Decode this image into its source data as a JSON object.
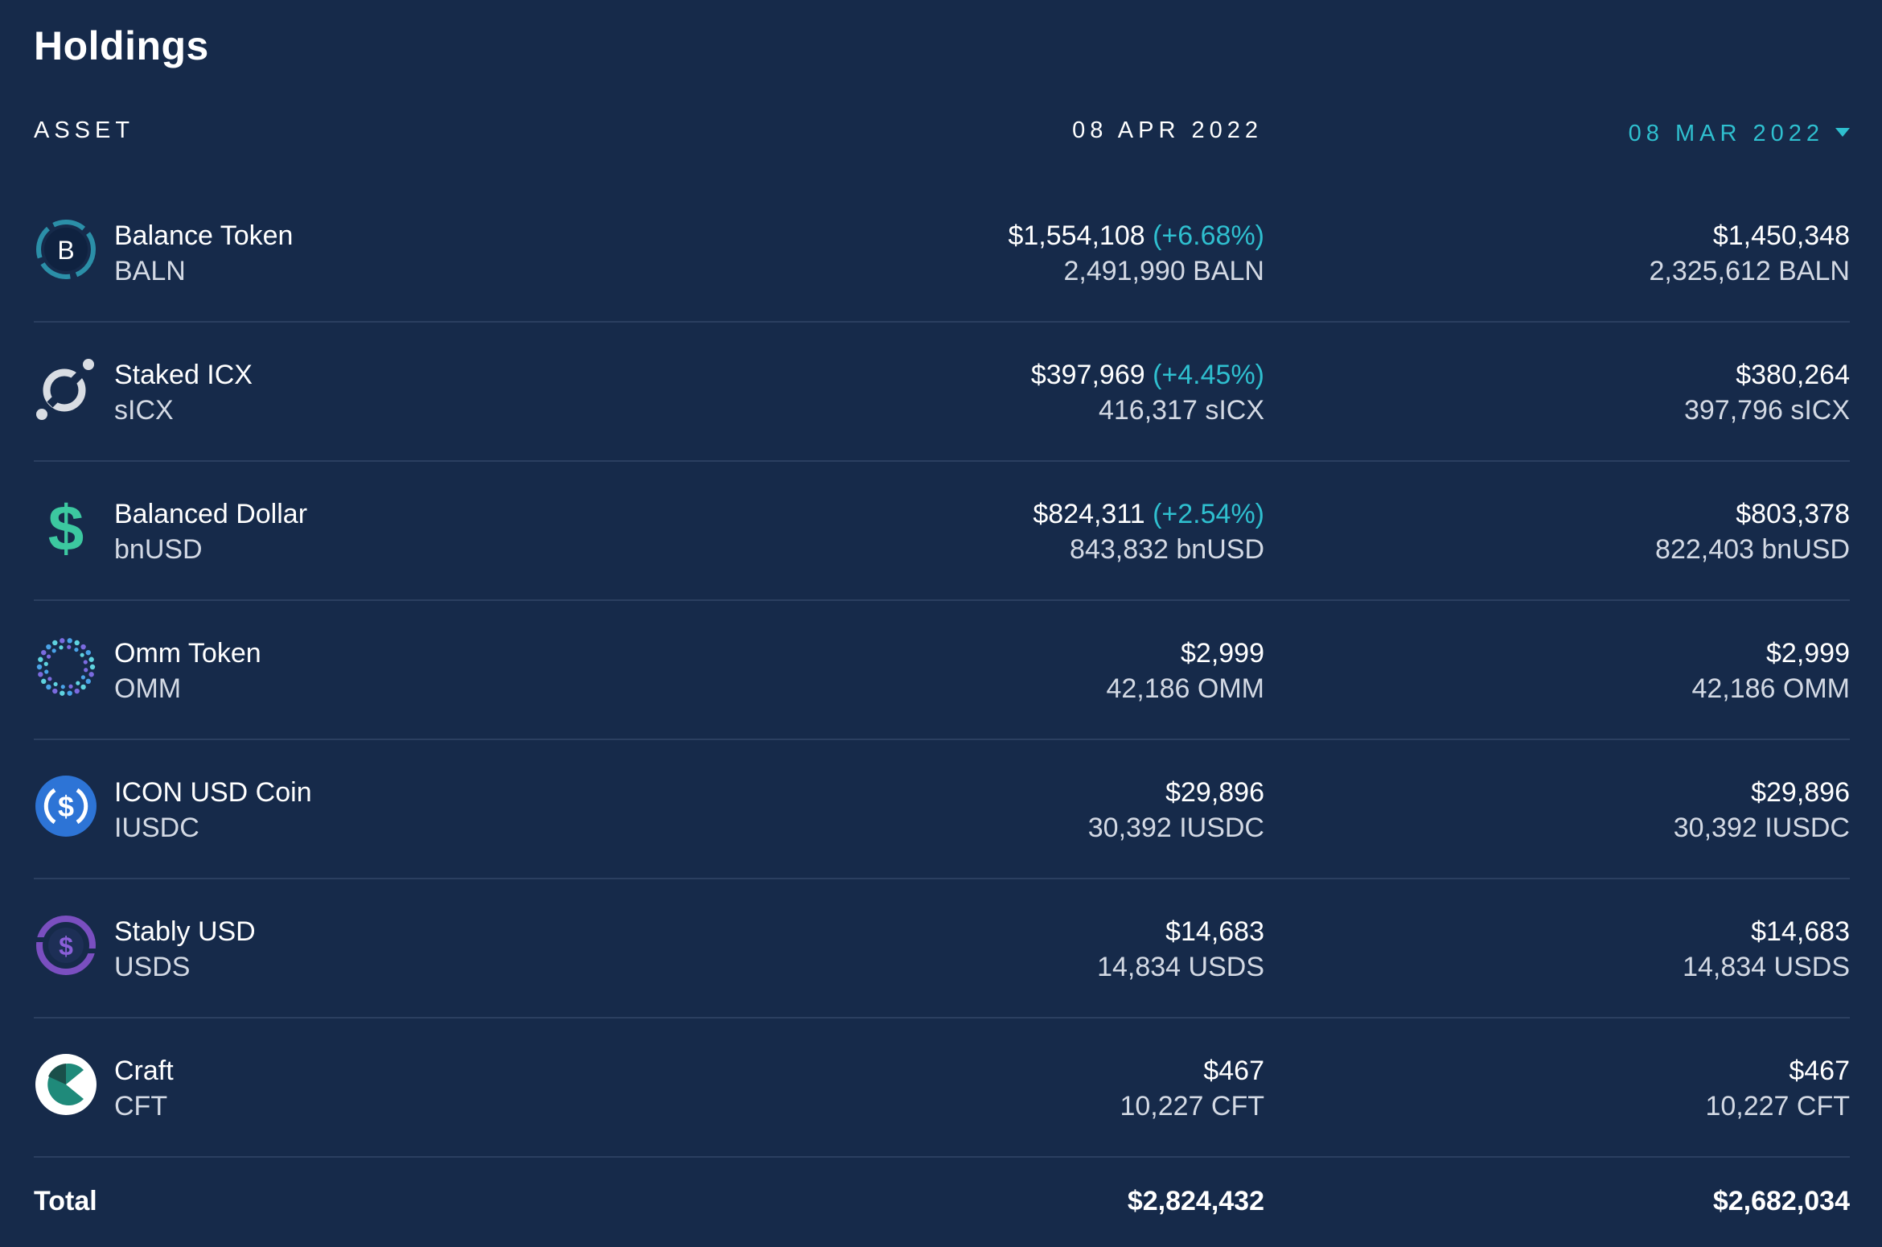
{
  "title": "Holdings",
  "columns": {
    "asset": "ASSET",
    "current_date": "08 APR 2022",
    "compare_date": "08 MAR 2022"
  },
  "colors": {
    "background": "#162a4a",
    "accent": "#2fbfcf",
    "divider": "#2b3f60"
  },
  "assets": [
    {
      "icon": "balance-token-icon",
      "name": "Balance Token",
      "symbol": "BALN",
      "current_value": "$1,554,108",
      "change": "(+6.68%)",
      "current_amount": "2,491,990 BALN",
      "compare_value": "$1,450,348",
      "compare_amount": "2,325,612 BALN"
    },
    {
      "icon": "icx-icon",
      "name": "Staked ICX",
      "symbol": "sICX",
      "current_value": "$397,969",
      "change": "(+4.45%)",
      "current_amount": "416,317 sICX",
      "compare_value": "$380,264",
      "compare_amount": "397,796 sICX"
    },
    {
      "icon": "dollar-sign-icon",
      "name": "Balanced Dollar",
      "symbol": "bnUSD",
      "current_value": "$824,311",
      "change": "(+2.54%)",
      "current_amount": "843,832 bnUSD",
      "compare_value": "$803,378",
      "compare_amount": "822,403 bnUSD"
    },
    {
      "icon": "omm-token-icon",
      "name": "Omm Token",
      "symbol": "OMM",
      "current_value": "$2,999",
      "change": "",
      "current_amount": "42,186 OMM",
      "compare_value": "$2,999",
      "compare_amount": "42,186 OMM"
    },
    {
      "icon": "usdc-icon",
      "name": "ICON USD Coin",
      "symbol": "IUSDC",
      "current_value": "$29,896",
      "change": "",
      "current_amount": "30,392 IUSDC",
      "compare_value": "$29,896",
      "compare_amount": "30,392 IUSDC"
    },
    {
      "icon": "stably-usd-icon",
      "name": "Stably USD",
      "symbol": "USDS",
      "current_value": "$14,683",
      "change": "",
      "current_amount": "14,834 USDS",
      "compare_value": "$14,683",
      "compare_amount": "14,834 USDS"
    },
    {
      "icon": "craft-icon",
      "name": "Craft",
      "symbol": "CFT",
      "current_value": "$467",
      "change": "",
      "current_amount": "10,227 CFT",
      "compare_value": "$467",
      "compare_amount": "10,227 CFT"
    }
  ],
  "total": {
    "label": "Total",
    "current": "$2,824,432",
    "compare": "$2,682,034"
  }
}
